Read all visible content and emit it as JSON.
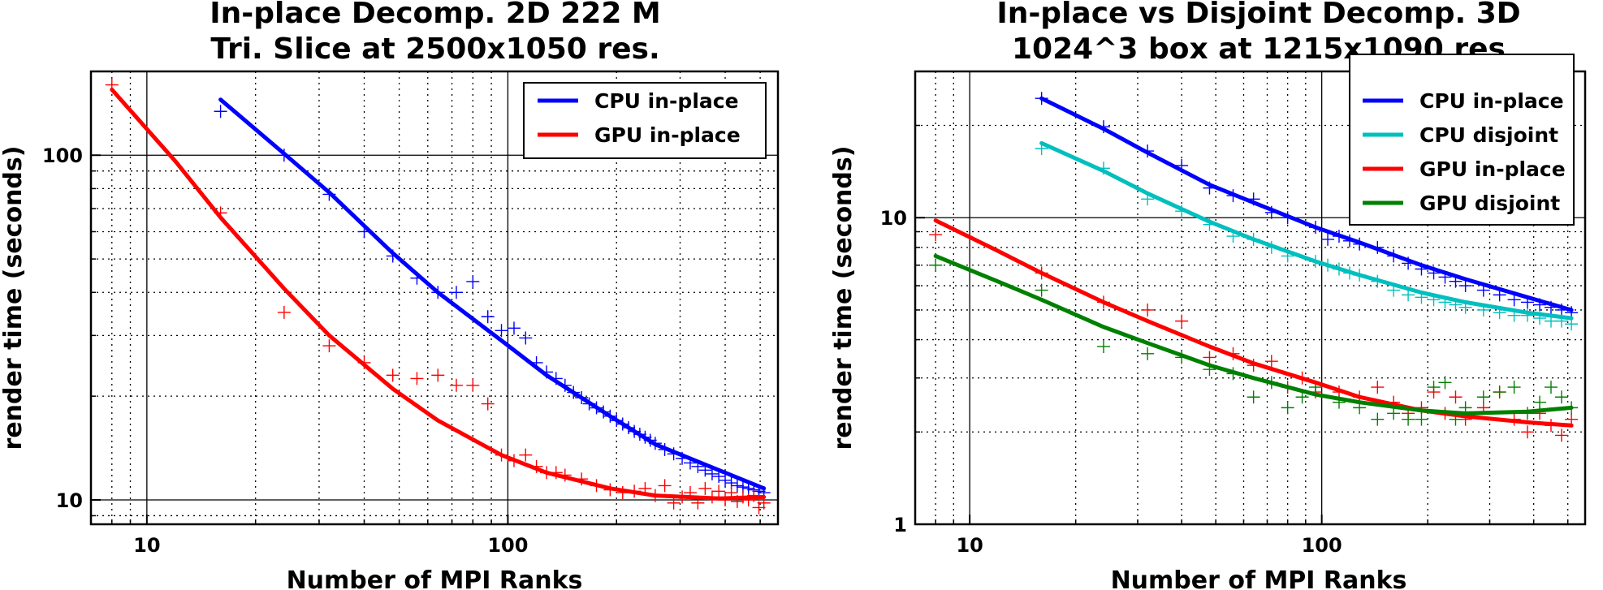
{
  "chart_data": [
    {
      "type": "line",
      "title": "In-place Decomp. 2D 222 M",
      "subtitle": "Tri. Slice at 2500x1050 res.",
      "xlabel": "Number of MPI Ranks",
      "ylabel": "render time (seconds)",
      "xscale": "log",
      "yscale": "log",
      "xlim": [
        7,
        560
      ],
      "ylim": [
        8.5,
        175
      ],
      "xticks": [
        10,
        100
      ],
      "xtick_labels": [
        "10",
        "100"
      ],
      "yticks": [
        10,
        100
      ],
      "ytick_labels": [
        "10",
        "100"
      ],
      "grid": true,
      "legend_position": "top-right",
      "series": [
        {
          "name": "CPU in-place",
          "color": "#0000ff",
          "fit_x": [
            16,
            24,
            32,
            48,
            64,
            96,
            128,
            192,
            256,
            384,
            512
          ],
          "fit_y": [
            145,
            101,
            78,
            52,
            40,
            29,
            23,
            17.5,
            14.5,
            12.2,
            10.8
          ],
          "points_x": [
            16,
            24,
            32,
            40,
            48,
            56,
            64,
            72,
            80,
            88,
            96,
            104,
            112,
            120,
            128,
            136,
            144,
            152,
            160,
            168,
            176,
            184,
            192,
            200,
            208,
            216,
            224,
            232,
            240,
            248,
            256,
            272,
            288,
            304,
            320,
            336,
            352,
            368,
            384,
            400,
            416,
            432,
            448,
            464,
            480,
            496,
            512
          ],
          "points_y": [
            134,
            100,
            77,
            60,
            51,
            44,
            40,
            40,
            43,
            34,
            31,
            31.5,
            29.5,
            25,
            23.5,
            22.5,
            21.5,
            20.5,
            19.8,
            19,
            18.5,
            18,
            17.5,
            17,
            16.6,
            16.2,
            15.8,
            15.5,
            15.2,
            14.9,
            14.6,
            14,
            13.6,
            13.2,
            12.8,
            12.5,
            12.2,
            11.9,
            11.7,
            11.4,
            11.2,
            11,
            10.9,
            10.8,
            10.7,
            10.6,
            10.5
          ]
        },
        {
          "name": "GPU in-place",
          "color": "#ff0000",
          "fit_x": [
            8,
            12,
            16,
            24,
            32,
            48,
            64,
            96,
            128,
            192,
            256,
            384,
            512
          ],
          "fit_y": [
            155,
            96,
            66,
            41,
            30,
            21,
            17,
            13.5,
            12,
            10.8,
            10.3,
            10.1,
            10.2
          ],
          "points_x": [
            8,
            16,
            24,
            32,
            40,
            48,
            56,
            64,
            72,
            80,
            88,
            96,
            104,
            112,
            120,
            128,
            136,
            144,
            160,
            176,
            192,
            208,
            224,
            240,
            256,
            272,
            288,
            304,
            320,
            336,
            352,
            368,
            384,
            400,
            416,
            432,
            448,
            464,
            480,
            496,
            512
          ],
          "points_y": [
            160,
            68,
            35,
            28,
            25,
            23,
            22.5,
            23,
            21.5,
            21.5,
            19,
            13.5,
            13,
            13.5,
            12.5,
            12,
            12,
            11.8,
            11.5,
            11,
            10.7,
            10.5,
            10.6,
            10.8,
            10.3,
            11,
            9.8,
            10.2,
            10.5,
            9.8,
            10.8,
            10.2,
            10.6,
            10,
            10.5,
            9.9,
            10.2,
            10,
            10.3,
            9.5,
            9.8
          ]
        }
      ]
    },
    {
      "type": "line",
      "title": "In-place vs Disjoint Decomp. 3D",
      "subtitle": "1024^3 box at 1215x1090 res",
      "xlabel": "Number of MPI Ranks",
      "ylabel": "render time (seconds)",
      "xscale": "log",
      "yscale": "log",
      "xlim": [
        7,
        560
      ],
      "ylim": [
        1,
        30
      ],
      "xticks": [
        10,
        100
      ],
      "xtick_labels": [
        "10",
        "100"
      ],
      "yticks": [
        1,
        10
      ],
      "ytick_labels": [
        "1",
        "10"
      ],
      "grid": true,
      "legend_position": "top-right",
      "series": [
        {
          "name": "CPU in-place",
          "color": "#0000ff",
          "fit_x": [
            16,
            24,
            32,
            48,
            64,
            96,
            128,
            192,
            256,
            384,
            512
          ],
          "fit_y": [
            24.5,
            19.5,
            16.3,
            12.8,
            11.2,
            9.3,
            8.3,
            7,
            6.3,
            5.5,
            5
          ],
          "points_x": [
            16,
            24,
            32,
            40,
            48,
            56,
            64,
            72,
            80,
            96,
            104,
            112,
            120,
            128,
            144,
            160,
            176,
            192,
            208,
            224,
            240,
            256,
            288,
            320,
            352,
            384,
            416,
            448,
            480,
            512
          ],
          "points_y": [
            24.5,
            19.8,
            16.5,
            14.8,
            12.5,
            11.8,
            11.5,
            10.4,
            10,
            9.3,
            8.5,
            8.7,
            8.4,
            8.2,
            8,
            7.5,
            7.1,
            6.8,
            6.6,
            6.4,
            6.2,
            6,
            5.8,
            5.6,
            5.4,
            5.3,
            5.2,
            5.1,
            5,
            4.9
          ]
        },
        {
          "name": "CPU disjoint",
          "color": "#00bfbf",
          "fit_x": [
            16,
            24,
            32,
            48,
            64,
            96,
            128,
            192,
            256,
            384,
            512
          ],
          "fit_y": [
            17.5,
            14.2,
            12,
            9.7,
            8.5,
            7.2,
            6.5,
            5.7,
            5.3,
            4.9,
            4.7
          ],
          "points_x": [
            16,
            24,
            32,
            40,
            48,
            56,
            64,
            72,
            80,
            96,
            104,
            112,
            120,
            128,
            144,
            160,
            176,
            192,
            208,
            224,
            240,
            256,
            288,
            320,
            352,
            384,
            416,
            448,
            480,
            512
          ],
          "points_y": [
            16.8,
            14.5,
            11.5,
            10.5,
            9.5,
            8.7,
            8.5,
            8,
            7.5,
            7.2,
            7,
            6.8,
            6.6,
            6.5,
            6.2,
            5.8,
            5.6,
            5.5,
            5.4,
            5.3,
            5.2,
            5.1,
            5,
            4.9,
            4.8,
            4.8,
            4.7,
            4.6,
            4.6,
            4.5
          ]
        },
        {
          "name": "GPU in-place",
          "color": "#ff0000",
          "fit_x": [
            8,
            12,
            16,
            24,
            32,
            48,
            64,
            96,
            128,
            192,
            256,
            384,
            512
          ],
          "fit_y": [
            9.8,
            7.8,
            6.6,
            5.3,
            4.6,
            3.8,
            3.35,
            2.9,
            2.6,
            2.35,
            2.25,
            2.15,
            2.1
          ],
          "points_x": [
            8,
            16,
            24,
            32,
            40,
            48,
            56,
            64,
            72,
            80,
            88,
            96,
            112,
            128,
            144,
            160,
            176,
            192,
            208,
            224,
            240,
            256,
            288,
            320,
            352,
            384,
            416,
            448,
            480,
            512
          ],
          "points_y": [
            8.8,
            6.6,
            5.3,
            5,
            4.6,
            3.5,
            3.6,
            3.3,
            3.4,
            2.8,
            3,
            2.7,
            2.7,
            2.6,
            2.8,
            2.5,
            2.3,
            2.4,
            2.7,
            2.3,
            2.6,
            2.2,
            2.4,
            2.7,
            2.2,
            2,
            2.3,
            2.1,
            1.95,
            2.2
          ]
        },
        {
          "name": "GPU disjoint",
          "color": "#008000",
          "fit_x": [
            8,
            12,
            16,
            24,
            32,
            48,
            64,
            96,
            128,
            192,
            256,
            384,
            512
          ],
          "fit_y": [
            7.5,
            6.2,
            5.4,
            4.4,
            3.9,
            3.3,
            3,
            2.65,
            2.5,
            2.35,
            2.3,
            2.33,
            2.4
          ],
          "points_x": [
            8,
            16,
            24,
            32,
            40,
            48,
            56,
            64,
            72,
            80,
            88,
            96,
            112,
            128,
            144,
            160,
            176,
            192,
            208,
            224,
            240,
            256,
            288,
            320,
            352,
            384,
            416,
            448,
            480,
            512
          ],
          "points_y": [
            7,
            5.8,
            3.8,
            3.6,
            3.5,
            3.2,
            3.1,
            2.6,
            2.9,
            2.4,
            2.6,
            2.8,
            2.5,
            2.4,
            2.2,
            2.3,
            2.2,
            2.2,
            2.8,
            2.9,
            2.2,
            2.4,
            2.6,
            2.7,
            2.8,
            2.3,
            2.5,
            2.8,
            2.6,
            2.4
          ]
        }
      ]
    }
  ]
}
